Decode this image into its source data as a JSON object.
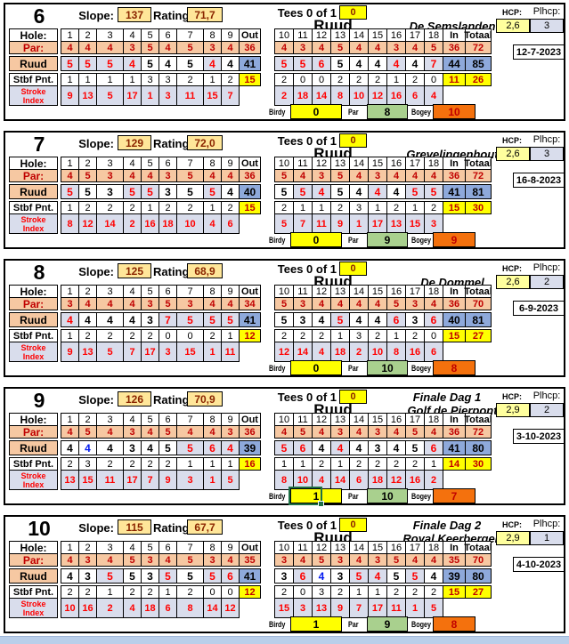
{
  "labels": {
    "hole": "Hole:",
    "par": "Par:",
    "stbf": "Stbf Pnt.",
    "stroke1": "Stroke",
    "stroke2": "Index",
    "slope": "Slope:",
    "rating": "Rating:",
    "tees": "Tees 0 of 1",
    "hcp": "HCP:",
    "plhcp": "Plhcp:",
    "birdy": "Birdy",
    "par_count": "Par",
    "bogey": "Bogey"
  },
  "colors": {
    "par_fill": "#F6C8A2",
    "bogey_fill": "#D9DDEC",
    "total_fill": "#8EA9DB",
    "stableford_total_fill": "#FFFF00",
    "slope_fill": "#FFE699",
    "hcp_fill": "#FFFF9E",
    "plhcp_fill": "#D9DDEC",
    "birdy_fill": "#FFFF00",
    "par_count_fill": "#A9D08E",
    "bogey_count_fill": "#F4710D",
    "bogey_text": "#FF0000",
    "birdie_text": "#0018F0",
    "dark_red_text": "#C00000",
    "bottom_strip": "#BACFEA",
    "selection_border": "#1E6F46"
  },
  "blocks": [
    {
      "number": "6",
      "slope": "137",
      "rating": "71,7",
      "tees": "0",
      "event": "",
      "player": "Ruud",
      "course": "De Semslanden",
      "hcp": "2,6",
      "plhcp": "3",
      "date": "12-7-2023",
      "selected": false,
      "front": {
        "holes": [
          "1",
          "2",
          "3",
          "4",
          "5",
          "6",
          "7",
          "8",
          "9",
          "Out"
        ],
        "par": [
          "4",
          "4",
          "4",
          "3",
          "5",
          "4",
          "5",
          "3",
          "4",
          "36"
        ],
        "score": [
          "5",
          "5",
          "5",
          "4",
          "5",
          "4",
          "5",
          "4",
          "4",
          "41"
        ],
        "types": [
          "o",
          "o",
          "o",
          "o",
          "p",
          "p",
          "p",
          "o",
          "p"
        ],
        "stbf": [
          "1",
          "1",
          "1",
          "1",
          "3",
          "3",
          "2",
          "1",
          "2",
          "15"
        ],
        "si": [
          "9",
          "13",
          "5",
          "17",
          "1",
          "3",
          "11",
          "15",
          "7"
        ]
      },
      "back": {
        "holes": [
          "10",
          "11",
          "12",
          "13",
          "14",
          "15",
          "16",
          "17",
          "18",
          "In",
          "Totaal"
        ],
        "par": [
          "4",
          "3",
          "4",
          "5",
          "4",
          "4",
          "3",
          "4",
          "5",
          "36",
          "72"
        ],
        "score": [
          "5",
          "5",
          "6",
          "5",
          "4",
          "4",
          "4",
          "4",
          "7",
          "44",
          "85"
        ],
        "types": [
          "o",
          "o",
          "o",
          "p",
          "p",
          "p",
          "o",
          "p",
          "o"
        ],
        "stbf": [
          "2",
          "0",
          "0",
          "2",
          "2",
          "2",
          "1",
          "2",
          "0",
          "11",
          "26"
        ],
        "si": [
          "2",
          "18",
          "14",
          "8",
          "10",
          "12",
          "16",
          "6",
          "4"
        ]
      },
      "counts": {
        "birdy": "0",
        "par": "8",
        "bogey": "10"
      }
    },
    {
      "number": "7",
      "slope": "129",
      "rating": "72,0",
      "tees": "0",
      "event": "",
      "player": "Ruud",
      "course": "Grevelingenhout",
      "hcp": "2,6",
      "plhcp": "3",
      "date": "16-8-2023",
      "selected": false,
      "front": {
        "holes": [
          "1",
          "2",
          "3",
          "4",
          "5",
          "6",
          "7",
          "8",
          "9",
          "Out"
        ],
        "par": [
          "4",
          "5",
          "3",
          "4",
          "4",
          "3",
          "5",
          "4",
          "4",
          "36"
        ],
        "score": [
          "5",
          "5",
          "3",
          "5",
          "5",
          "3",
          "5",
          "5",
          "4",
          "40"
        ],
        "types": [
          "o",
          "p",
          "p",
          "o",
          "o",
          "p",
          "p",
          "o",
          "p"
        ],
        "stbf": [
          "1",
          "2",
          "2",
          "2",
          "1",
          "2",
          "2",
          "1",
          "2",
          "15"
        ],
        "si": [
          "8",
          "12",
          "14",
          "2",
          "16",
          "18",
          "10",
          "4",
          "6"
        ]
      },
      "back": {
        "holes": [
          "10",
          "11",
          "12",
          "13",
          "14",
          "15",
          "16",
          "17",
          "18",
          "In",
          "Totaal"
        ],
        "par": [
          "5",
          "4",
          "3",
          "5",
          "4",
          "3",
          "4",
          "4",
          "4",
          "36",
          "72"
        ],
        "score": [
          "5",
          "5",
          "4",
          "5",
          "4",
          "4",
          "4",
          "5",
          "5",
          "41",
          "81"
        ],
        "types": [
          "p",
          "o",
          "o",
          "p",
          "p",
          "o",
          "p",
          "o",
          "o"
        ],
        "stbf": [
          "2",
          "1",
          "1",
          "2",
          "3",
          "1",
          "2",
          "1",
          "2",
          "15",
          "30"
        ],
        "si": [
          "5",
          "7",
          "11",
          "9",
          "1",
          "17",
          "13",
          "15",
          "3"
        ]
      },
      "counts": {
        "birdy": "0",
        "par": "9",
        "bogey": "9"
      }
    },
    {
      "number": "8",
      "slope": "125",
      "rating": "68,9",
      "tees": "0",
      "event": "",
      "player": "Ruud",
      "course": "De Dommel",
      "hcp": "2,6",
      "plhcp": "2",
      "date": "6-9-2023",
      "selected": false,
      "front": {
        "holes": [
          "1",
          "2",
          "3",
          "4",
          "5",
          "6",
          "7",
          "8",
          "9",
          "Out"
        ],
        "par": [
          "3",
          "4",
          "4",
          "4",
          "3",
          "5",
          "3",
          "4",
          "4",
          "34"
        ],
        "score": [
          "4",
          "4",
          "4",
          "4",
          "3",
          "7",
          "5",
          "5",
          "5",
          "41"
        ],
        "types": [
          "o",
          "p",
          "p",
          "p",
          "p",
          "o",
          "o",
          "o",
          "o"
        ],
        "stbf": [
          "1",
          "2",
          "2",
          "2",
          "2",
          "0",
          "0",
          "2",
          "1",
          "12"
        ],
        "si": [
          "9",
          "13",
          "5",
          "7",
          "17",
          "3",
          "15",
          "1",
          "11"
        ]
      },
      "back": {
        "holes": [
          "10",
          "11",
          "12",
          "13",
          "14",
          "15",
          "16",
          "17",
          "18",
          "In",
          "Totaal"
        ],
        "par": [
          "5",
          "3",
          "4",
          "4",
          "4",
          "4",
          "5",
          "3",
          "4",
          "36",
          "70"
        ],
        "score": [
          "5",
          "3",
          "4",
          "5",
          "4",
          "4",
          "6",
          "3",
          "6",
          "40",
          "81"
        ],
        "types": [
          "p",
          "p",
          "p",
          "o",
          "p",
          "p",
          "o",
          "p",
          "o"
        ],
        "stbf": [
          "2",
          "2",
          "2",
          "1",
          "3",
          "2",
          "1",
          "2",
          "0",
          "15",
          "27"
        ],
        "si": [
          "12",
          "14",
          "4",
          "18",
          "2",
          "10",
          "8",
          "16",
          "6"
        ]
      },
      "counts": {
        "birdy": "0",
        "par": "10",
        "bogey": "8"
      }
    },
    {
      "number": "9",
      "slope": "126",
      "rating": "70,9",
      "tees": "0",
      "event": "Finale Dag 1",
      "player": "Ruud",
      "course": "Golf de Pierpont",
      "hcp": "2,9",
      "plhcp": "2",
      "date": "3-10-2023",
      "selected": true,
      "front": {
        "holes": [
          "1",
          "2",
          "3",
          "4",
          "5",
          "6",
          "7",
          "8",
          "9",
          "Out"
        ],
        "par": [
          "4",
          "5",
          "4",
          "3",
          "4",
          "5",
          "4",
          "4",
          "3",
          "36"
        ],
        "score": [
          "4",
          "4",
          "4",
          "3",
          "4",
          "5",
          "5",
          "6",
          "4",
          "39"
        ],
        "types": [
          "p",
          "u",
          "p",
          "p",
          "p",
          "p",
          "o",
          "o",
          "o"
        ],
        "stbf": [
          "2",
          "3",
          "2",
          "2",
          "2",
          "2",
          "1",
          "1",
          "1",
          "16"
        ],
        "si": [
          "13",
          "15",
          "11",
          "17",
          "7",
          "9",
          "3",
          "1",
          "5"
        ]
      },
      "back": {
        "holes": [
          "10",
          "11",
          "12",
          "13",
          "14",
          "15",
          "16",
          "17",
          "18",
          "In",
          "Totaal"
        ],
        "par": [
          "4",
          "5",
          "4",
          "3",
          "4",
          "3",
          "4",
          "5",
          "4",
          "36",
          "72"
        ],
        "score": [
          "5",
          "6",
          "4",
          "4",
          "4",
          "3",
          "4",
          "5",
          "6",
          "41",
          "80"
        ],
        "types": [
          "o",
          "o",
          "p",
          "o",
          "p",
          "p",
          "p",
          "p",
          "o"
        ],
        "stbf": [
          "1",
          "1",
          "2",
          "1",
          "2",
          "2",
          "2",
          "2",
          "1",
          "14",
          "30"
        ],
        "si": [
          "8",
          "10",
          "4",
          "14",
          "6",
          "18",
          "12",
          "16",
          "2"
        ]
      },
      "counts": {
        "birdy": "1",
        "par": "10",
        "bogey": "7"
      }
    },
    {
      "number": "10",
      "slope": "115",
      "rating": "67,7",
      "tees": "0",
      "event": "Finale Dag 2",
      "player": "Ruud",
      "course": "Royal Keerbergen",
      "hcp": "2,9",
      "plhcp": "1",
      "date": "4-10-2023",
      "selected": false,
      "front": {
        "holes": [
          "1",
          "2",
          "3",
          "4",
          "5",
          "6",
          "7",
          "8",
          "9",
          "Out"
        ],
        "par": [
          "4",
          "3",
          "4",
          "5",
          "3",
          "4",
          "5",
          "3",
          "4",
          "35"
        ],
        "score": [
          "4",
          "3",
          "5",
          "5",
          "3",
          "5",
          "5",
          "5",
          "6",
          "41"
        ],
        "types": [
          "p",
          "p",
          "o",
          "p",
          "p",
          "o",
          "p",
          "o",
          "o"
        ],
        "stbf": [
          "2",
          "2",
          "1",
          "2",
          "2",
          "1",
          "2",
          "0",
          "0",
          "12"
        ],
        "si": [
          "10",
          "16",
          "2",
          "4",
          "18",
          "6",
          "8",
          "14",
          "12"
        ]
      },
      "back": {
        "holes": [
          "10",
          "11",
          "12",
          "13",
          "14",
          "15",
          "16",
          "17",
          "18",
          "In",
          "Totaal"
        ],
        "par": [
          "3",
          "4",
          "5",
          "3",
          "4",
          "3",
          "5",
          "4",
          "4",
          "35",
          "70"
        ],
        "score": [
          "3",
          "6",
          "4",
          "3",
          "5",
          "4",
          "5",
          "5",
          "4",
          "39",
          "80"
        ],
        "types": [
          "p",
          "o",
          "u",
          "p",
          "o",
          "o",
          "p",
          "o",
          "p"
        ],
        "stbf": [
          "2",
          "0",
          "3",
          "2",
          "1",
          "1",
          "2",
          "2",
          "2",
          "15",
          "27"
        ],
        "si": [
          "15",
          "3",
          "13",
          "9",
          "7",
          "17",
          "11",
          "1",
          "5"
        ]
      },
      "counts": {
        "birdy": "1",
        "par": "9",
        "bogey": "8"
      }
    }
  ]
}
